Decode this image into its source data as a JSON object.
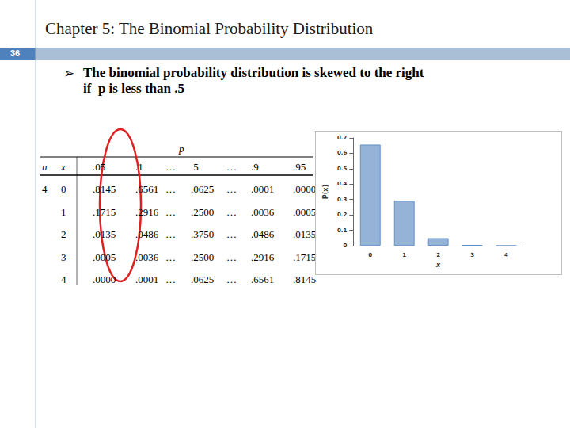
{
  "header": {
    "title": "Chapter 5: The Binomial Probability Distribution",
    "page": "36"
  },
  "bullet": {
    "symbol": "➢",
    "lines": [
      "The binomial probability distribution is skewed to the right",
      "if  p is less than .5"
    ]
  },
  "table": {
    "group_header": "p",
    "columns": [
      "n",
      "x",
      ".05",
      ".1",
      "…",
      ".5",
      "…",
      ".9",
      ".95"
    ],
    "rows": [
      [
        "4",
        "0",
        ".8145",
        ".6561",
        "…",
        ".0625",
        "…",
        ".0001",
        ".0000"
      ],
      [
        "",
        "1",
        ".1715",
        ".2916",
        "…",
        ".2500",
        "…",
        ".0036",
        ".0005"
      ],
      [
        "",
        "2",
        ".0135",
        ".0486",
        "…",
        ".3750",
        "…",
        ".0486",
        ".0135"
      ],
      [
        "",
        "3",
        ".0005",
        ".0036",
        "…",
        ".2500",
        "…",
        ".2916",
        ".1715"
      ],
      [
        "",
        "4",
        ".0000",
        ".0001",
        "…",
        ".0625",
        "…",
        ".6561",
        ".8145"
      ]
    ]
  },
  "chart_data": {
    "type": "bar",
    "categories": [
      "0",
      "1",
      "2",
      "3",
      "4"
    ],
    "values": [
      0.6561,
      0.2916,
      0.0486,
      0.0036,
      0.0001
    ],
    "color": "#95b3d7",
    "x_label": "x",
    "y_label": "P(x)",
    "ylim": [
      0,
      0.7
    ],
    "yticks": [
      0,
      0.1,
      0.2,
      0.3,
      0.4,
      0.5,
      0.6,
      0.7
    ],
    "grid": false
  }
}
